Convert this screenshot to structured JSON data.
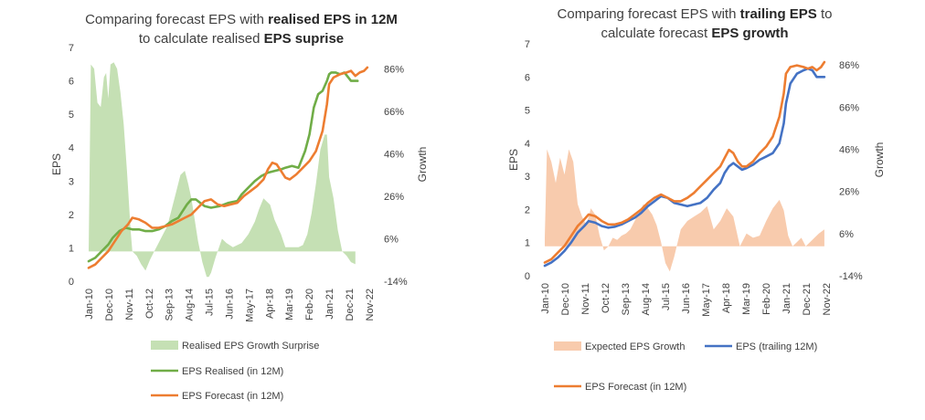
{
  "chart_data": [
    {
      "type": "line",
      "title_parts": [
        {
          "text": "Comparing forecast EPS with ",
          "bold": false
        },
        {
          "text": "realised EPS in 12M",
          "bold": true
        }
      ],
      "title_parts2": [
        {
          "text": "to calculate realised ",
          "bold": false
        },
        {
          "text": "EPS suprise",
          "bold": true
        }
      ],
      "ylabel": "EPS",
      "y2label": "Growth",
      "ylim": [
        0,
        7
      ],
      "y2lim": [
        -0.14,
        0.96
      ],
      "y_ticks": [
        "0",
        "1",
        "2",
        "3",
        "4",
        "5",
        "6",
        "7"
      ],
      "y2_ticks": [
        "-14%",
        "6%",
        "26%",
        "46%",
        "66%",
        "86%"
      ],
      "x_ticks": [
        "Jan-10",
        "Dec-10",
        "Nov-11",
        "Oct-12",
        "Sep-13",
        "Aug-14",
        "Jul-15",
        "Jun-16",
        "May-17",
        "Apr-18",
        "Mar-19",
        "Feb-20",
        "Jan-21",
        "Dec-21",
        "Nov-22"
      ],
      "series": [
        {
          "name": "Realised EPS Growth Surprise",
          "kind": "area",
          "axis": "secondary",
          "color": "#c5e0b4",
          "x": [
            2010.0,
            2010.1,
            2010.25,
            2010.4,
            2010.55,
            2010.7,
            2010.8,
            2010.9,
            2011.0,
            2011.15,
            2011.3,
            2011.45,
            2011.6,
            2011.75,
            2011.85,
            2011.92,
            2012.0,
            2012.2,
            2012.4,
            2012.6,
            2012.8,
            2013.0,
            2013.2,
            2013.4,
            2013.6,
            2013.8,
            2014.0,
            2014.2,
            2014.4,
            2014.55,
            2014.7,
            2014.85,
            2015.0,
            2015.2,
            2015.4,
            2015.5,
            2015.6,
            2015.8,
            2016.0,
            2016.1,
            2016.3,
            2016.6,
            2017.0,
            2017.3,
            2017.6,
            2017.8,
            2018.0,
            2018.3,
            2018.5,
            2018.8,
            2019.0,
            2019.3,
            2019.6,
            2019.8,
            2020.0,
            2020.2,
            2020.4,
            2020.6,
            2020.8,
            2020.9,
            2021.0,
            2021.2,
            2021.4,
            2021.6,
            2021.8,
            2022.0,
            2022.2
          ],
          "values": [
            0.0,
            0.88,
            0.86,
            0.7,
            0.68,
            0.82,
            0.84,
            0.72,
            0.88,
            0.89,
            0.86,
            0.75,
            0.6,
            0.38,
            0.22,
            0.1,
            0.0,
            -0.02,
            -0.06,
            -0.09,
            -0.04,
            0.0,
            0.04,
            0.08,
            0.12,
            0.2,
            0.28,
            0.36,
            0.38,
            0.32,
            0.25,
            0.15,
            0.05,
            -0.05,
            -0.12,
            -0.12,
            -0.1,
            -0.03,
            0.03,
            0.06,
            0.04,
            0.02,
            0.04,
            0.08,
            0.14,
            0.2,
            0.25,
            0.22,
            0.15,
            0.08,
            0.02,
            0.02,
            0.02,
            0.03,
            0.08,
            0.18,
            0.32,
            0.48,
            0.55,
            0.55,
            0.35,
            0.25,
            0.1,
            0.0,
            -0.02,
            -0.05,
            -0.06
          ]
        },
        {
          "name": "EPS Realised (in 12M)",
          "kind": "line",
          "axis": "primary",
          "color": "#70ad47",
          "x": [
            2010.0,
            2010.3,
            2010.6,
            2010.9,
            2011.1,
            2011.4,
            2011.7,
            2012.0,
            2012.3,
            2012.6,
            2012.9,
            2013.2,
            2013.5,
            2013.8,
            2014.1,
            2014.3,
            2014.5,
            2014.7,
            2014.9,
            2015.1,
            2015.3,
            2015.6,
            2016.0,
            2016.4,
            2016.8,
            2017.0,
            2017.3,
            2017.6,
            2017.9,
            2018.2,
            2018.5,
            2018.8,
            2019.0,
            2019.3,
            2019.6,
            2019.9,
            2020.1,
            2020.3,
            2020.5,
            2020.7,
            2020.9,
            2021.0,
            2021.1,
            2021.3,
            2021.5,
            2021.7,
            2022.0,
            2022.3
          ],
          "values": [
            0.6,
            0.7,
            0.9,
            1.1,
            1.3,
            1.5,
            1.6,
            1.55,
            1.55,
            1.5,
            1.5,
            1.55,
            1.65,
            1.8,
            1.9,
            2.1,
            2.3,
            2.45,
            2.45,
            2.35,
            2.25,
            2.2,
            2.25,
            2.35,
            2.4,
            2.6,
            2.8,
            3.0,
            3.15,
            3.25,
            3.3,
            3.35,
            3.4,
            3.45,
            3.4,
            3.9,
            4.4,
            5.2,
            5.6,
            5.7,
            6.0,
            6.2,
            6.25,
            6.25,
            6.2,
            6.25,
            6.0,
            6.0
          ]
        },
        {
          "name": "EPS Forecast (in 12M)",
          "kind": "line",
          "axis": "primary",
          "color": "#ed7d31",
          "x": [
            2010.0,
            2010.3,
            2010.6,
            2010.9,
            2011.2,
            2011.5,
            2011.8,
            2012.0,
            2012.3,
            2012.6,
            2012.9,
            2013.2,
            2013.5,
            2013.8,
            2014.1,
            2014.4,
            2014.7,
            2015.0,
            2015.3,
            2015.6,
            2015.9,
            2016.2,
            2016.5,
            2016.8,
            2017.1,
            2017.4,
            2017.7,
            2018.0,
            2018.2,
            2018.4,
            2018.6,
            2018.8,
            2019.0,
            2019.2,
            2019.5,
            2019.8,
            2020.1,
            2020.4,
            2020.7,
            2020.9,
            2021.0,
            2021.2,
            2021.5,
            2021.8,
            2022.0,
            2022.2,
            2022.4,
            2022.6,
            2022.75
          ],
          "values": [
            0.4,
            0.5,
            0.7,
            0.9,
            1.2,
            1.5,
            1.7,
            1.9,
            1.85,
            1.75,
            1.6,
            1.6,
            1.65,
            1.7,
            1.8,
            1.9,
            2.0,
            2.2,
            2.4,
            2.45,
            2.3,
            2.25,
            2.3,
            2.35,
            2.55,
            2.7,
            2.85,
            3.05,
            3.35,
            3.55,
            3.5,
            3.3,
            3.1,
            3.05,
            3.2,
            3.4,
            3.6,
            3.9,
            4.5,
            5.3,
            5.9,
            6.1,
            6.2,
            6.25,
            6.3,
            6.15,
            6.25,
            6.3,
            6.4
          ]
        }
      ],
      "legend": [
        "Realised EPS Growth Surprise",
        "EPS Realised (in 12M)",
        "EPS Forecast (in 12M)"
      ],
      "legend_placement": "bottom",
      "grid": false
    },
    {
      "type": "line",
      "title_parts": [
        {
          "text": "Comparing forecast EPS with ",
          "bold": false
        },
        {
          "text": "trailing EPS",
          "bold": true
        },
        {
          "text": " to",
          "bold": false
        }
      ],
      "title_parts2": [
        {
          "text": "calculate forecast ",
          "bold": false
        },
        {
          "text": "EPS growth",
          "bold": true
        }
      ],
      "ylabel": "EPS",
      "y2label": "Growth",
      "ylim": [
        0,
        7
      ],
      "y2lim": [
        -0.14,
        0.96
      ],
      "y_ticks": [
        "0",
        "1",
        "2",
        "3",
        "4",
        "5",
        "6",
        "7"
      ],
      "y2_ticks": [
        "-14%",
        "6%",
        "26%",
        "46%",
        "66%",
        "86%"
      ],
      "x_ticks": [
        "Jan-10",
        "Dec-10",
        "Nov-11",
        "Oct-12",
        "Sep-13",
        "Aug-14",
        "Jul-15",
        "Jun-16",
        "May-17",
        "Apr-18",
        "Mar-19",
        "Feb-20",
        "Jan-21",
        "Dec-21",
        "Nov-22"
      ],
      "series": [
        {
          "name": "Expected EPS Growth",
          "kind": "area",
          "axis": "secondary",
          "color": "#f8cbad",
          "x": [
            2010.0,
            2010.1,
            2010.3,
            2010.5,
            2010.7,
            2010.9,
            2011.1,
            2011.3,
            2011.5,
            2011.7,
            2011.9,
            2012.1,
            2012.3,
            2012.5,
            2012.7,
            2012.9,
            2013.1,
            2013.3,
            2013.5,
            2013.7,
            2013.9,
            2014.1,
            2014.3,
            2014.5,
            2014.7,
            2014.9,
            2015.1,
            2015.3,
            2015.5,
            2015.7,
            2015.9,
            2016.2,
            2016.5,
            2016.8,
            2017.1,
            2017.4,
            2017.7,
            2018.0,
            2018.3,
            2018.6,
            2018.9,
            2019.2,
            2019.5,
            2019.8,
            2020.1,
            2020.4,
            2020.7,
            2020.9,
            2021.1,
            2021.3,
            2021.5,
            2021.7,
            2021.9,
            2022.1,
            2022.3,
            2022.5,
            2022.75
          ],
          "values": [
            0.04,
            0.46,
            0.4,
            0.3,
            0.42,
            0.34,
            0.46,
            0.4,
            0.2,
            0.14,
            0.1,
            0.18,
            0.15,
            0.05,
            -0.02,
            0.0,
            0.04,
            0.03,
            0.05,
            0.06,
            0.08,
            0.12,
            0.16,
            0.2,
            0.18,
            0.15,
            0.1,
            0.02,
            -0.08,
            -0.12,
            -0.05,
            0.08,
            0.12,
            0.14,
            0.16,
            0.19,
            0.08,
            0.12,
            0.18,
            0.14,
            0.0,
            0.06,
            0.04,
            0.05,
            0.12,
            0.18,
            0.22,
            0.17,
            0.05,
            0.0,
            0.02,
            0.04,
            0.0,
            0.02,
            0.04,
            0.06,
            0.08
          ]
        },
        {
          "name": "EPS (trailing 12M)",
          "kind": "line",
          "axis": "primary",
          "color": "#4472c4",
          "x": [
            2010.0,
            2010.3,
            2010.6,
            2010.9,
            2011.2,
            2011.5,
            2011.8,
            2012.0,
            2012.3,
            2012.6,
            2012.9,
            2013.2,
            2013.5,
            2013.8,
            2014.1,
            2014.4,
            2014.7,
            2015.0,
            2015.3,
            2015.6,
            2015.9,
            2016.2,
            2016.5,
            2016.8,
            2017.1,
            2017.4,
            2017.7,
            2018.0,
            2018.2,
            2018.4,
            2018.6,
            2018.8,
            2019.0,
            2019.2,
            2019.5,
            2019.8,
            2020.1,
            2020.4,
            2020.7,
            2020.9,
            2021.0,
            2021.2,
            2021.5,
            2021.8,
            2022.0,
            2022.2,
            2022.4,
            2022.6,
            2022.75
          ],
          "values": [
            0.3,
            0.4,
            0.55,
            0.75,
            1.0,
            1.3,
            1.5,
            1.65,
            1.6,
            1.5,
            1.45,
            1.48,
            1.55,
            1.65,
            1.75,
            1.9,
            2.1,
            2.25,
            2.4,
            2.35,
            2.2,
            2.15,
            2.1,
            2.15,
            2.2,
            2.35,
            2.6,
            2.8,
            3.1,
            3.3,
            3.4,
            3.3,
            3.2,
            3.25,
            3.35,
            3.5,
            3.6,
            3.7,
            4.0,
            4.6,
            5.2,
            5.8,
            6.1,
            6.2,
            6.25,
            6.2,
            6.0,
            6.0,
            6.0
          ]
        },
        {
          "name": "EPS Forecast (in 12M)",
          "kind": "line",
          "axis": "primary",
          "color": "#ed7d31",
          "x": [
            2010.0,
            2010.3,
            2010.6,
            2010.9,
            2011.2,
            2011.5,
            2011.8,
            2012.0,
            2012.3,
            2012.6,
            2012.9,
            2013.2,
            2013.5,
            2013.8,
            2014.1,
            2014.4,
            2014.7,
            2015.0,
            2015.3,
            2015.6,
            2015.9,
            2016.2,
            2016.5,
            2016.8,
            2017.1,
            2017.4,
            2017.7,
            2018.0,
            2018.2,
            2018.4,
            2018.6,
            2018.8,
            2019.0,
            2019.2,
            2019.5,
            2019.8,
            2020.1,
            2020.4,
            2020.7,
            2020.9,
            2021.0,
            2021.2,
            2021.5,
            2021.8,
            2022.0,
            2022.2,
            2022.4,
            2022.6,
            2022.75
          ],
          "values": [
            0.4,
            0.5,
            0.7,
            0.9,
            1.2,
            1.5,
            1.7,
            1.85,
            1.8,
            1.65,
            1.55,
            1.55,
            1.6,
            1.7,
            1.85,
            2.0,
            2.2,
            2.35,
            2.45,
            2.35,
            2.25,
            2.25,
            2.35,
            2.5,
            2.7,
            2.9,
            3.1,
            3.3,
            3.55,
            3.8,
            3.7,
            3.45,
            3.3,
            3.3,
            3.45,
            3.7,
            3.9,
            4.2,
            4.8,
            5.5,
            6.1,
            6.3,
            6.35,
            6.3,
            6.25,
            6.3,
            6.2,
            6.3,
            6.45
          ]
        }
      ],
      "legend": [
        "Expected EPS Growth",
        "EPS (trailing 12M)",
        "EPS Forecast (in 12M)"
      ],
      "legend_placement": "bottom",
      "grid": false
    }
  ]
}
